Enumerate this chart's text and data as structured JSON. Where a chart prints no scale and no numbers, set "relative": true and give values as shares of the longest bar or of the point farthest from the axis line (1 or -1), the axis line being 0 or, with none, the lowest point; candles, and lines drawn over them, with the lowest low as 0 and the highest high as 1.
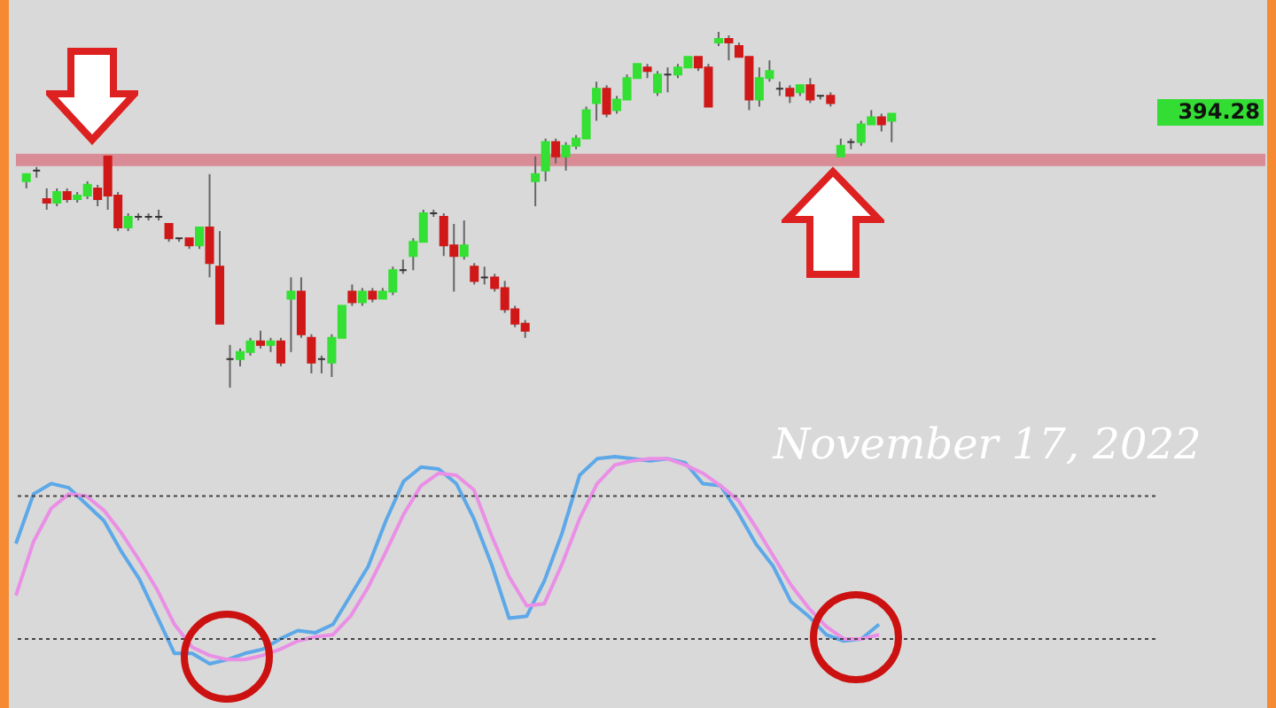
{
  "chart_data": [
    {
      "type": "candlestick",
      "relative": true,
      "tick_labels": false,
      "categories": [
        null,
        null,
        null,
        null,
        null,
        null,
        null,
        null,
        null,
        null,
        null,
        null,
        null,
        null,
        null,
        null,
        null,
        null,
        null,
        null,
        null,
        null,
        null,
        null,
        null,
        null,
        null,
        null,
        null,
        null,
        null,
        null,
        null,
        null,
        null,
        null,
        null,
        null,
        null,
        null,
        null,
        null,
        null,
        null,
        null,
        null,
        null,
        null,
        null,
        null,
        null,
        null,
        null,
        null,
        null,
        null,
        null,
        null,
        null,
        null,
        null,
        null,
        null,
        null,
        null,
        null,
        null,
        null,
        null,
        null,
        null,
        null,
        null,
        null,
        null,
        null,
        null,
        null,
        null,
        null,
        null,
        null,
        null,
        null,
        null,
        null
      ],
      "ohlc": [
        [
          0.58,
          0.6,
          0.56,
          0.6
        ],
        [
          0.61,
          0.62,
          0.59,
          0.61
        ],
        [
          0.53,
          0.56,
          0.5,
          0.52
        ],
        [
          0.52,
          0.56,
          0.51,
          0.55
        ],
        [
          0.55,
          0.56,
          0.52,
          0.53
        ],
        [
          0.53,
          0.55,
          0.52,
          0.54
        ],
        [
          0.54,
          0.58,
          0.53,
          0.57
        ],
        [
          0.56,
          0.57,
          0.51,
          0.53
        ],
        [
          0.65,
          0.65,
          0.5,
          0.54
        ],
        [
          0.54,
          0.55,
          0.44,
          0.45
        ],
        [
          0.45,
          0.49,
          0.44,
          0.48
        ],
        [
          0.48,
          0.49,
          0.47,
          0.48
        ],
        [
          0.48,
          0.49,
          0.47,
          0.48
        ],
        [
          0.48,
          0.5,
          0.47,
          0.48
        ],
        [
          0.46,
          0.46,
          0.41,
          0.42
        ],
        [
          0.42,
          0.42,
          0.41,
          0.42
        ],
        [
          0.42,
          0.42,
          0.39,
          0.4
        ],
        [
          0.4,
          0.45,
          0.39,
          0.45
        ],
        [
          0.45,
          0.6,
          0.31,
          0.35
        ],
        [
          0.34,
          0.44,
          0.18,
          0.18
        ],
        [
          0.08,
          0.12,
          0,
          0.08
        ],
        [
          0.08,
          0.11,
          0.06,
          0.1
        ],
        [
          0.1,
          0.14,
          0.09,
          0.13
        ],
        [
          0.13,
          0.16,
          0.11,
          0.12
        ],
        [
          0.12,
          0.14,
          0.1,
          0.13
        ],
        [
          0.13,
          0.14,
          0.06,
          0.07
        ],
        [
          0.25,
          0.31,
          0.1,
          0.27
        ],
        [
          0.27,
          0.31,
          0.14,
          0.15
        ],
        [
          0.14,
          0.15,
          0.04,
          0.07
        ],
        [
          0.08,
          0.09,
          0.04,
          0.08
        ],
        [
          0.07,
          0.15,
          0.03,
          0.14
        ],
        [
          0.14,
          0.23,
          0.14,
          0.23
        ],
        [
          0.27,
          0.29,
          0.23,
          0.24
        ],
        [
          0.24,
          0.28,
          0.23,
          0.27
        ],
        [
          0.27,
          0.28,
          0.24,
          0.25
        ],
        [
          0.25,
          0.28,
          0.25,
          0.27
        ],
        [
          0.27,
          0.34,
          0.26,
          0.33
        ],
        [
          0.33,
          0.36,
          0.32,
          0.33
        ],
        [
          0.37,
          0.42,
          0.33,
          0.41
        ],
        [
          0.41,
          0.5,
          0.41,
          0.49
        ],
        [
          0.49,
          0.5,
          0.48,
          0.49
        ],
        [
          0.48,
          0.49,
          0.37,
          0.4
        ],
        [
          0.4,
          0.46,
          0.27,
          0.37
        ],
        [
          0.37,
          0.47,
          0.36,
          0.4
        ],
        [
          0.34,
          0.35,
          0.29,
          0.3
        ],
        [
          0.31,
          0.34,
          0.29,
          0.31
        ],
        [
          0.31,
          0.32,
          0.27,
          0.28
        ],
        [
          0.28,
          0.3,
          0.21,
          0.22
        ],
        [
          0.22,
          0.23,
          0.17,
          0.18
        ],
        [
          0.18,
          0.19,
          0.14,
          0.16
        ],
        [
          0.58,
          0.65,
          0.51,
          0.6
        ],
        [
          0.61,
          0.7,
          0.58,
          0.69
        ],
        [
          0.69,
          0.7,
          0.63,
          0.65
        ],
        [
          0.65,
          0.69,
          0.61,
          0.68
        ],
        [
          0.68,
          0.71,
          0.67,
          0.7
        ],
        [
          0.7,
          0.79,
          0.7,
          0.78
        ],
        [
          0.8,
          0.86,
          0.75,
          0.84
        ],
        [
          0.84,
          0.85,
          0.76,
          0.77
        ],
        [
          0.78,
          0.82,
          0.77,
          0.81
        ],
        [
          0.81,
          0.88,
          0.81,
          0.87
        ],
        [
          0.87,
          0.91,
          0.87,
          0.91
        ],
        [
          0.9,
          0.91,
          0.87,
          0.89
        ],
        [
          0.83,
          0.89,
          0.82,
          0.88
        ],
        [
          0.88,
          0.9,
          0.83,
          0.88
        ],
        [
          0.88,
          0.91,
          0.87,
          0.9
        ],
        [
          0.9,
          0.93,
          0.9,
          0.93
        ],
        [
          0.93,
          0.93,
          0.89,
          0.9
        ],
        [
          0.9,
          0.91,
          0.79,
          0.79
        ],
        [
          0.97,
          1.0,
          0.96,
          0.98
        ],
        [
          0.98,
          0.99,
          0.92,
          0.97
        ],
        [
          0.96,
          0.97,
          0.93,
          0.93
        ],
        [
          0.93,
          0.93,
          0.78,
          0.81
        ],
        [
          0.81,
          0.9,
          0.79,
          0.87
        ],
        [
          0.87,
          0.92,
          0.86,
          0.89
        ],
        [
          0.84,
          0.86,
          0.82,
          0.84
        ],
        [
          0.84,
          0.85,
          0.8,
          0.82
        ],
        [
          0.83,
          0.85,
          0.82,
          0.85
        ],
        [
          0.85,
          0.87,
          0.8,
          0.81
        ],
        [
          0.82,
          0.82,
          0.81,
          0.82
        ],
        [
          0.82,
          0.83,
          0.79,
          0.8
        ],
        [
          0.65,
          0.7,
          0.65,
          0.68
        ],
        [
          0.69,
          0.7,
          0.67,
          0.69
        ],
        [
          0.69,
          0.75,
          0.68,
          0.74
        ],
        [
          0.74,
          0.78,
          0.74,
          0.76
        ],
        [
          0.76,
          0.77,
          0.72,
          0.74
        ],
        [
          0.75,
          0.77,
          0.69,
          0.77
        ]
      ],
      "colors": [
        "#33e033",
        "#333333",
        "#d01818",
        "#33e033",
        "#d01818",
        "#33e033",
        "#33e033",
        "#d01818",
        "#d01818",
        "#d01818",
        "#33e033",
        "#333333",
        "#333333",
        "#333333",
        "#d01818",
        "#333333",
        "#d01818",
        "#33e033",
        "#d01818",
        "#d01818",
        "#333333",
        "#33e033",
        "#33e033",
        "#d01818",
        "#33e033",
        "#d01818",
        "#33e033",
        "#d01818",
        "#d01818",
        "#333333",
        "#33e033",
        "#33e033",
        "#d01818",
        "#33e033",
        "#d01818",
        "#33e033",
        "#33e033",
        "#333333",
        "#33e033",
        "#33e033",
        "#333333",
        "#d01818",
        "#d01818",
        "#33e033",
        "#d01818",
        "#333333",
        "#d01818",
        "#d01818",
        "#d01818",
        "#d01818",
        "#33e033",
        "#33e033",
        "#d01818",
        "#33e033",
        "#33e033",
        "#33e033",
        "#33e033",
        "#d01818",
        "#33e033",
        "#33e033",
        "#33e033",
        "#d01818",
        "#33e033",
        "#333333",
        "#33e033",
        "#33e033",
        "#d01818",
        "#d01818",
        "#33e033",
        "#d01818",
        "#d01818",
        "#d01818",
        "#33e033",
        "#33e033",
        "#333333",
        "#d01818",
        "#33e033",
        "#d01818",
        "#333333",
        "#d01818",
        "#33e033",
        "#333333",
        "#33e033",
        "#33e033",
        "#d01818",
        "#33e033"
      ],
      "ref_lines": [
        {
          "axis": "y",
          "value": 0.64,
          "color": "#d98c95",
          "line_style": "solid"
        }
      ],
      "annotations": [
        "394.28"
      ]
    },
    {
      "type": "line",
      "relative": true,
      "tick_labels": false,
      "categories": [
        null,
        null,
        null,
        null,
        null,
        null,
        null,
        null,
        null,
        null,
        null,
        null,
        null,
        null,
        null,
        null,
        null,
        null,
        null,
        null,
        null,
        null,
        null,
        null,
        null,
        null,
        null,
        null,
        null,
        null,
        null,
        null,
        null,
        null,
        null,
        null,
        null,
        null,
        null,
        null,
        null,
        null,
        null,
        null,
        null,
        null,
        null,
        null,
        null,
        null
      ],
      "series": [
        {
          "color": "#5ca8e8",
          "values": [
            0.58,
            0.82,
            0.87,
            0.85,
            0.77,
            0.69,
            0.54,
            0.41,
            0.23,
            0.05,
            0.05,
            0,
            0.02,
            0.05,
            0.07,
            0.12,
            0.16,
            0.15,
            0.19,
            0.33,
            0.47,
            0.69,
            0.88,
            0.95,
            0.94,
            0.87,
            0.7,
            0.48,
            0.22,
            0.23,
            0.4,
            0.63,
            0.91,
            0.99,
            1,
            0.99,
            0.98,
            0.99,
            0.97,
            0.87,
            0.86,
            0.73,
            0.58,
            0.47,
            0.3,
            0.23,
            0.14,
            0.11,
            0.12,
            0.19
          ]
        },
        {
          "color": "#ea8ee6",
          "values": [
            0.33,
            0.59,
            0.75,
            0.82,
            0.81,
            0.74,
            0.63,
            0.5,
            0.36,
            0.19,
            0.08,
            0.04,
            0.02,
            0.02,
            0.04,
            0.07,
            0.11,
            0.13,
            0.14,
            0.23,
            0.37,
            0.54,
            0.72,
            0.86,
            0.92,
            0.91,
            0.84,
            0.62,
            0.42,
            0.28,
            0.29,
            0.48,
            0.7,
            0.87,
            0.96,
            0.98,
            0.99,
            0.99,
            0.96,
            0.92,
            0.86,
            0.79,
            0.66,
            0.52,
            0.38,
            0.27,
            0.18,
            0.12,
            0.12,
            0.14
          ]
        }
      ],
      "ref_lines": [
        {
          "axis": "y",
          "value": 0.81,
          "color": "#444444",
          "line_style": "dotted"
        },
        {
          "axis": "y",
          "value": 0.12,
          "color": "#444444",
          "line_style": "dotted"
        }
      ],
      "annotations": [
        "November 17, 2022"
      ]
    }
  ]
}
